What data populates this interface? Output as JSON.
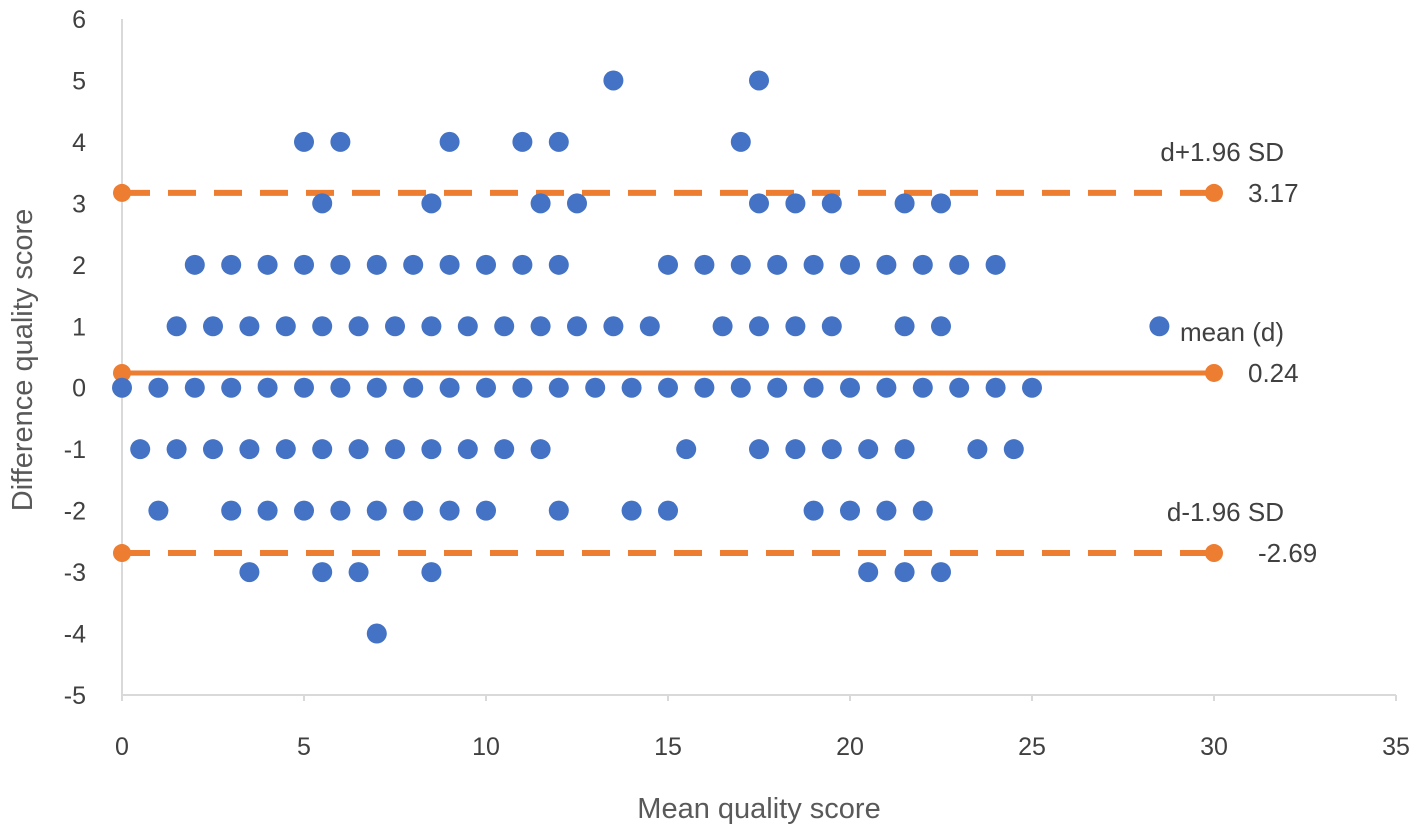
{
  "chart_data": {
    "type": "scatter",
    "title": "",
    "xlabel": "Mean quality score",
    "ylabel": "Difference quality score",
    "xlim": [
      0,
      35
    ],
    "ylim": [
      -5,
      6
    ],
    "x_ticks": [
      0,
      5,
      10,
      15,
      20,
      25,
      30,
      35
    ],
    "y_ticks": [
      -5,
      -4,
      -3,
      -2,
      -1,
      0,
      1,
      2,
      3,
      4,
      5,
      6
    ],
    "grid": false,
    "legend": "none",
    "series": [
      {
        "color": "#4472C4",
        "points": [
          [
            13.5,
            5
          ],
          [
            17.5,
            5
          ],
          [
            5,
            4
          ],
          [
            6,
            4
          ],
          [
            9,
            4
          ],
          [
            11,
            4
          ],
          [
            12,
            4
          ],
          [
            17,
            4
          ],
          [
            5.5,
            3
          ],
          [
            8.5,
            3
          ],
          [
            11.5,
            3
          ],
          [
            12.5,
            3
          ],
          [
            17.5,
            3
          ],
          [
            18.5,
            3
          ],
          [
            19.5,
            3
          ],
          [
            21.5,
            3
          ],
          [
            22.5,
            3
          ],
          [
            2,
            2
          ],
          [
            3,
            2
          ],
          [
            4,
            2
          ],
          [
            5,
            2
          ],
          [
            6,
            2
          ],
          [
            7,
            2
          ],
          [
            8,
            2
          ],
          [
            9,
            2
          ],
          [
            10,
            2
          ],
          [
            11,
            2
          ],
          [
            12,
            2
          ],
          [
            15,
            2
          ],
          [
            16,
            2
          ],
          [
            17,
            2
          ],
          [
            18,
            2
          ],
          [
            19,
            2
          ],
          [
            20,
            2
          ],
          [
            21,
            2
          ],
          [
            22,
            2
          ],
          [
            23,
            2
          ],
          [
            24,
            2
          ],
          [
            1.5,
            1
          ],
          [
            2.5,
            1
          ],
          [
            3.5,
            1
          ],
          [
            4.5,
            1
          ],
          [
            5.5,
            1
          ],
          [
            6.5,
            1
          ],
          [
            7.5,
            1
          ],
          [
            8.5,
            1
          ],
          [
            9.5,
            1
          ],
          [
            10.5,
            1
          ],
          [
            11.5,
            1
          ],
          [
            12.5,
            1
          ],
          [
            13.5,
            1
          ],
          [
            14.5,
            1
          ],
          [
            16.5,
            1
          ],
          [
            17.5,
            1
          ],
          [
            18.5,
            1
          ],
          [
            19.5,
            1
          ],
          [
            21.5,
            1
          ],
          [
            22.5,
            1
          ],
          [
            28.5,
            1
          ],
          [
            0,
            0
          ],
          [
            1,
            0
          ],
          [
            2,
            0
          ],
          [
            3,
            0
          ],
          [
            4,
            0
          ],
          [
            5,
            0
          ],
          [
            6,
            0
          ],
          [
            7,
            0
          ],
          [
            8,
            0
          ],
          [
            9,
            0
          ],
          [
            10,
            0
          ],
          [
            11,
            0
          ],
          [
            12,
            0
          ],
          [
            13,
            0
          ],
          [
            14,
            0
          ],
          [
            15,
            0
          ],
          [
            16,
            0
          ],
          [
            17,
            0
          ],
          [
            18,
            0
          ],
          [
            19,
            0
          ],
          [
            20,
            0
          ],
          [
            21,
            0
          ],
          [
            22,
            0
          ],
          [
            23,
            0
          ],
          [
            24,
            0
          ],
          [
            25,
            0
          ],
          [
            0.5,
            -1
          ],
          [
            1.5,
            -1
          ],
          [
            2.5,
            -1
          ],
          [
            3.5,
            -1
          ],
          [
            4.5,
            -1
          ],
          [
            5.5,
            -1
          ],
          [
            6.5,
            -1
          ],
          [
            7.5,
            -1
          ],
          [
            8.5,
            -1
          ],
          [
            9.5,
            -1
          ],
          [
            10.5,
            -1
          ],
          [
            11.5,
            -1
          ],
          [
            15.5,
            -1
          ],
          [
            17.5,
            -1
          ],
          [
            18.5,
            -1
          ],
          [
            19.5,
            -1
          ],
          [
            20.5,
            -1
          ],
          [
            21.5,
            -1
          ],
          [
            23.5,
            -1
          ],
          [
            24.5,
            -1
          ],
          [
            1,
            -2
          ],
          [
            3,
            -2
          ],
          [
            4,
            -2
          ],
          [
            5,
            -2
          ],
          [
            6,
            -2
          ],
          [
            7,
            -2
          ],
          [
            8,
            -2
          ],
          [
            9,
            -2
          ],
          [
            10,
            -2
          ],
          [
            12,
            -2
          ],
          [
            14,
            -2
          ],
          [
            15,
            -2
          ],
          [
            19,
            -2
          ],
          [
            20,
            -2
          ],
          [
            21,
            -2
          ],
          [
            22,
            -2
          ],
          [
            3.5,
            -3
          ],
          [
            5.5,
            -3
          ],
          [
            6.5,
            -3
          ],
          [
            8.5,
            -3
          ],
          [
            20.5,
            -3
          ],
          [
            21.5,
            -3
          ],
          [
            22.5,
            -3
          ],
          [
            7,
            -4
          ]
        ]
      }
    ],
    "reference_lines": [
      {
        "label": "d+1.96 SD",
        "value": 3.17,
        "value_text": "3.17",
        "style": "dashed",
        "color": "#ED7D31",
        "x_range": [
          0,
          30
        ]
      },
      {
        "label": "mean (d)",
        "value": 0.24,
        "value_text": "0.24",
        "style": "solid",
        "color": "#ED7D31",
        "x_range": [
          0,
          30
        ]
      },
      {
        "label": "d-1.96 SD",
        "value": -2.69,
        "value_text": "-2.69",
        "style": "dashed",
        "color": "#ED7D31",
        "x_range": [
          0,
          30
        ]
      }
    ]
  }
}
